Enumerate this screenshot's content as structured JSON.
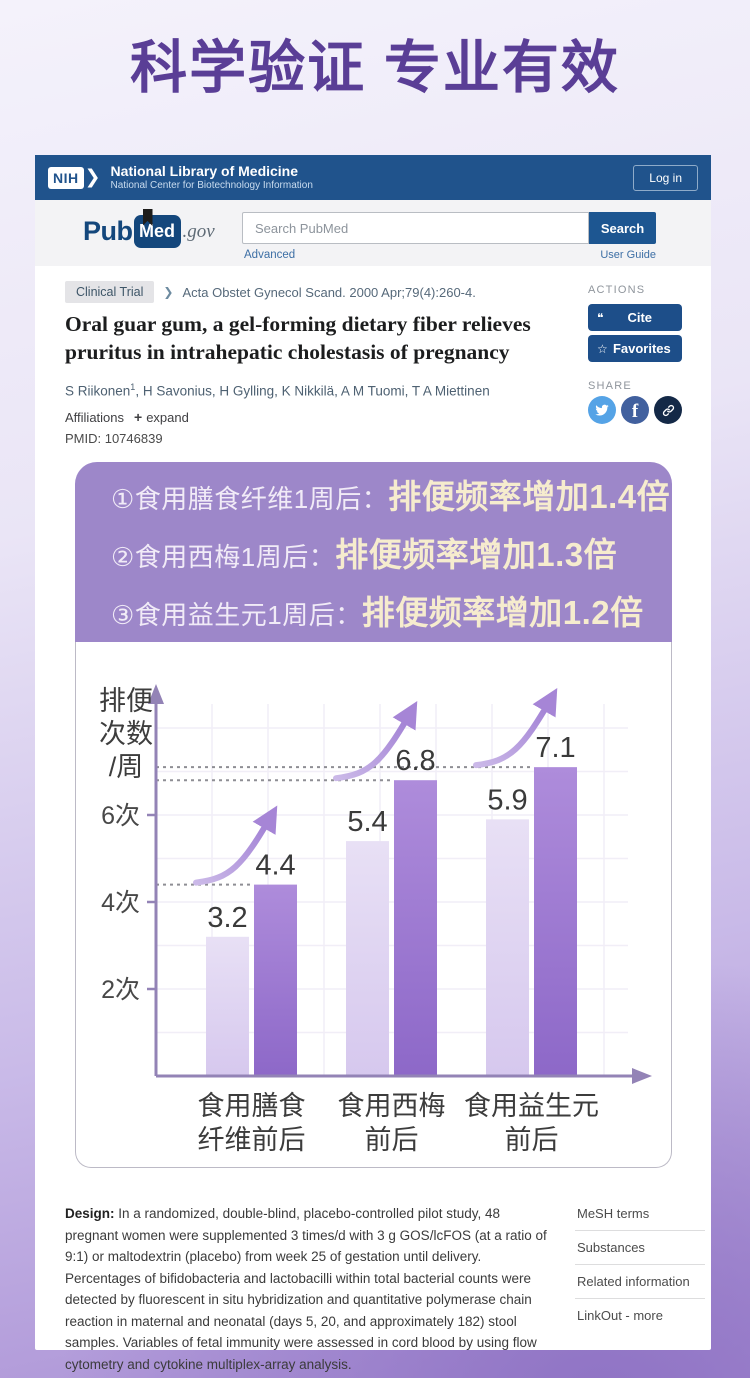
{
  "colors": {
    "banner_purple": "#5a3e96",
    "header_blue": "#20538c",
    "action_button_blue": "#1d4e89",
    "link_blue": "#3d6fa5",
    "overlay_purple": "#9d87c9",
    "overlay_highlight_cream": "#f6ecce",
    "bar_before_light": "#ddd2ef",
    "bar_after_purple": "#9a76d0",
    "twitter_blue": "#55a3e6",
    "facebook_blue": "#41609e",
    "copylink_navy": "#142947"
  },
  "icons": {
    "nih_chevron": "❯",
    "citation_chevron": "❯",
    "quote": "❝",
    "star": "☆",
    "plus": "+",
    "facebook_f": "f"
  },
  "banner": {
    "title": "科学验证 专业有效"
  },
  "nih_header": {
    "logo": "NIH",
    "title": "National Library of Medicine",
    "subtitle": "National Center for Biotechnology Information",
    "login_label": "Log in"
  },
  "search": {
    "logo_pub": "Pub",
    "logo_med": "Med",
    "logo_gov": ".gov",
    "placeholder": "Search PubMed",
    "search_label": "Search",
    "advanced_label": "Advanced",
    "user_guide_label": "User Guide"
  },
  "article": {
    "badge": "Clinical Trial",
    "citation": "Acta Obstet Gynecol Scand. 2000 Apr;79(4):260-4.",
    "title": "Oral guar gum, a gel-forming dietary fiber relieves pruritus in intrahepatic cholestasis of pregnancy",
    "author_first": "S Riikonen",
    "author_first_sup": "1",
    "authors_rest": ", H Savonius, H Gylling, K Nikkilä, A M Tuomi, T A Miettinen",
    "affiliations_label": "Affiliations",
    "expand_label": "expand",
    "pmid": "PMID: 10746839"
  },
  "actions": {
    "heading": "ACTIONS",
    "cite_label": "Cite",
    "favorites_label": "Favorites",
    "share_heading": "SHARE"
  },
  "overlay": {
    "lines": [
      {
        "prefix": "①食用膳食纤维1周后：",
        "highlight": "排便频率增加1.4倍"
      },
      {
        "prefix": "②食用西梅1周后：",
        "highlight": "排便频率增加1.3倍"
      },
      {
        "prefix": "③食用益生元1周后：",
        "highlight": "排便频率增加1.2倍"
      }
    ]
  },
  "chart_data": {
    "type": "bar",
    "title": "",
    "ylabel": "排便次数/周",
    "ylabel_lines": [
      "排便",
      "次数",
      "/周"
    ],
    "categories": [
      "食用膳食纤维前后",
      "食用西梅前后",
      "食用益生元前后"
    ],
    "category_lines": [
      [
        "食用膳食",
        "纤维前后"
      ],
      [
        "食用西梅",
        "前后"
      ],
      [
        "食用益生元",
        "前后"
      ]
    ],
    "series": [
      {
        "name": "前 (before)",
        "values": [
          3.2,
          5.4,
          5.9
        ]
      },
      {
        "name": "后 (after)",
        "values": [
          4.4,
          6.8,
          7.1
        ]
      }
    ],
    "yticks": [
      {
        "value": 2,
        "label": "2次"
      },
      {
        "value": 4,
        "label": "4次"
      },
      {
        "value": 6,
        "label": "6次"
      }
    ],
    "ylim": [
      0,
      9
    ],
    "grid": true,
    "legend": "none",
    "annotations": "dotted guide line and rising arrow at each after-bar",
    "colors": {
      "before": "#ddd2ef",
      "after": "#9a76d0",
      "axis": "#9383b6"
    }
  },
  "abstract": {
    "design_label": "Design:",
    "design_text": " In a randomized, double-blind, placebo-controlled pilot study, 48 pregnant women were supplemented 3 times/d with 3 g GOS/lcFOS (at a ratio of 9:1) or maltodextrin (placebo) from week 25 of gestation until delivery. Percentages of bifidobacteria and lactobacilli within total bacterial counts were detected by fluorescent in situ hybridization and quantitative polymerase chain reaction in maternal and neonatal (days 5, 20, and approximately 182) stool samples. Variables of fetal immunity were assessed in cord blood by using flow cytometry and cytokine multiplex-array analysis."
  },
  "sidebar": {
    "items": [
      {
        "label": "MeSH terms"
      },
      {
        "label": "Substances"
      },
      {
        "label": "Related information"
      },
      {
        "label": "LinkOut - more"
      }
    ]
  }
}
